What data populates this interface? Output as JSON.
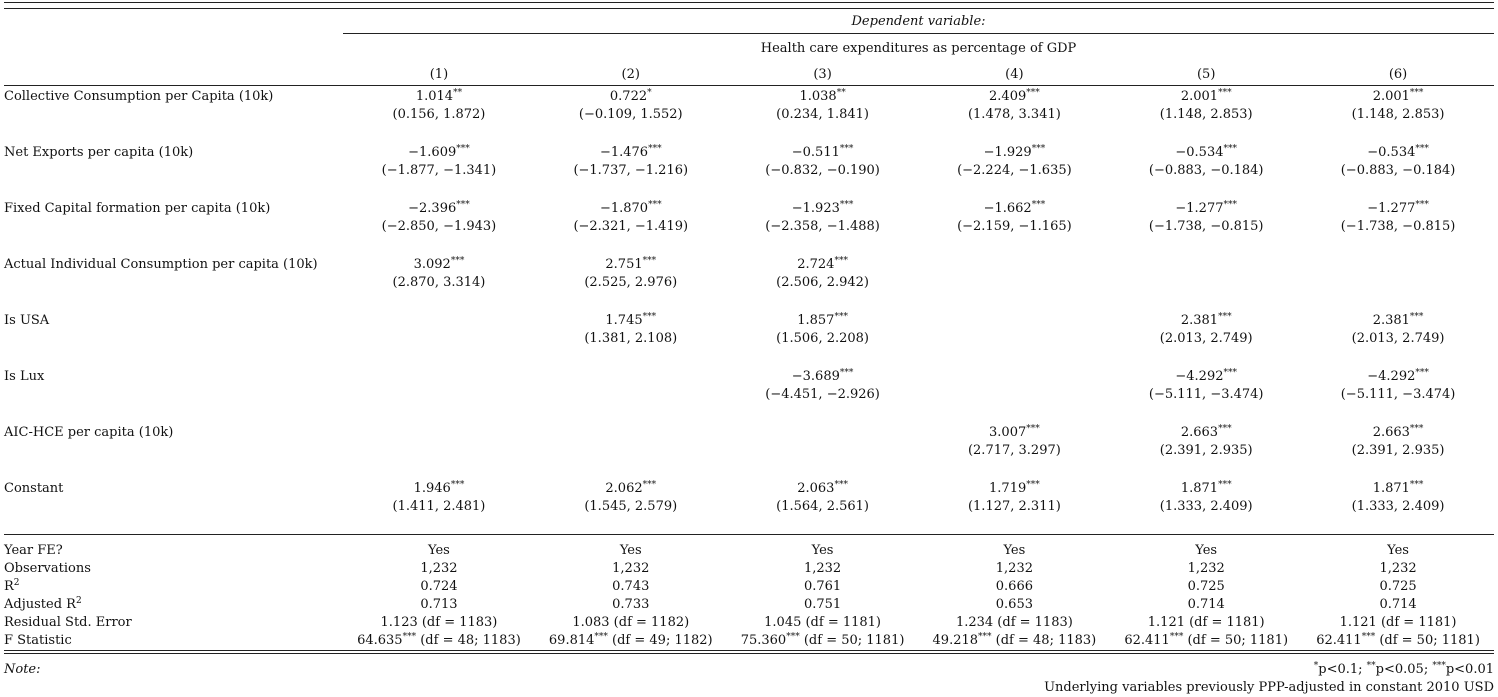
{
  "header": {
    "dependent_variable_label": "Dependent variable:",
    "dependent_variable": "Health care expenditures as percentage of GDP",
    "columns": [
      "(1)",
      "(2)",
      "(3)",
      "(4)",
      "(5)",
      "(6)"
    ]
  },
  "variables": [
    {
      "label": "Collective Consumption per Capita (10k)",
      "cells": [
        {
          "coef": "1.014",
          "stars": "**",
          "ci": "(0.156, 1.872)"
        },
        {
          "coef": "0.722",
          "stars": "*",
          "ci": "(−0.109, 1.552)"
        },
        {
          "coef": "1.038",
          "stars": "**",
          "ci": "(0.234, 1.841)"
        },
        {
          "coef": "2.409",
          "stars": "***",
          "ci": "(1.478, 3.341)"
        },
        {
          "coef": "2.001",
          "stars": "***",
          "ci": "(1.148, 2.853)"
        },
        {
          "coef": "2.001",
          "stars": "***",
          "ci": "(1.148, 2.853)"
        }
      ]
    },
    {
      "label": "Net Exports per capita (10k)",
      "cells": [
        {
          "coef": "−1.609",
          "stars": "***",
          "ci": "(−1.877, −1.341)"
        },
        {
          "coef": "−1.476",
          "stars": "***",
          "ci": "(−1.737, −1.216)"
        },
        {
          "coef": "−0.511",
          "stars": "***",
          "ci": "(−0.832, −0.190)"
        },
        {
          "coef": "−1.929",
          "stars": "***",
          "ci": "(−2.224, −1.635)"
        },
        {
          "coef": "−0.534",
          "stars": "***",
          "ci": "(−0.883, −0.184)"
        },
        {
          "coef": "−0.534",
          "stars": "***",
          "ci": "(−0.883, −0.184)"
        }
      ]
    },
    {
      "label": "Fixed Capital formation per capita (10k)",
      "cells": [
        {
          "coef": "−2.396",
          "stars": "***",
          "ci": "(−2.850, −1.943)"
        },
        {
          "coef": "−1.870",
          "stars": "***",
          "ci": "(−2.321, −1.419)"
        },
        {
          "coef": "−1.923",
          "stars": "***",
          "ci": "(−2.358, −1.488)"
        },
        {
          "coef": "−1.662",
          "stars": "***",
          "ci": "(−2.159, −1.165)"
        },
        {
          "coef": "−1.277",
          "stars": "***",
          "ci": "(−1.738, −0.815)"
        },
        {
          "coef": "−1.277",
          "stars": "***",
          "ci": "(−1.738, −0.815)"
        }
      ]
    },
    {
      "label": "Actual Individual Consumption per capita (10k)",
      "cells": [
        {
          "coef": "3.092",
          "stars": "***",
          "ci": "(2.870, 3.314)"
        },
        {
          "coef": "2.751",
          "stars": "***",
          "ci": "(2.525, 2.976)"
        },
        {
          "coef": "2.724",
          "stars": "***",
          "ci": "(2.506, 2.942)"
        },
        {
          "coef": "",
          "stars": "",
          "ci": ""
        },
        {
          "coef": "",
          "stars": "",
          "ci": ""
        },
        {
          "coef": "",
          "stars": "",
          "ci": ""
        }
      ]
    },
    {
      "label": "Is USA",
      "cells": [
        {
          "coef": "",
          "stars": "",
          "ci": ""
        },
        {
          "coef": "1.745",
          "stars": "***",
          "ci": "(1.381, 2.108)"
        },
        {
          "coef": "1.857",
          "stars": "***",
          "ci": "(1.506, 2.208)"
        },
        {
          "coef": "",
          "stars": "",
          "ci": ""
        },
        {
          "coef": "2.381",
          "stars": "***",
          "ci": "(2.013, 2.749)"
        },
        {
          "coef": "2.381",
          "stars": "***",
          "ci": "(2.013, 2.749)"
        }
      ]
    },
    {
      "label": "Is Lux",
      "cells": [
        {
          "coef": "",
          "stars": "",
          "ci": ""
        },
        {
          "coef": "",
          "stars": "",
          "ci": ""
        },
        {
          "coef": "−3.689",
          "stars": "***",
          "ci": "(−4.451, −2.926)"
        },
        {
          "coef": "",
          "stars": "",
          "ci": ""
        },
        {
          "coef": "−4.292",
          "stars": "***",
          "ci": "(−5.111, −3.474)"
        },
        {
          "coef": "−4.292",
          "stars": "***",
          "ci": "(−5.111, −3.474)"
        }
      ]
    },
    {
      "label": "AIC-HCE per capita (10k)",
      "cells": [
        {
          "coef": "",
          "stars": "",
          "ci": ""
        },
        {
          "coef": "",
          "stars": "",
          "ci": ""
        },
        {
          "coef": "",
          "stars": "",
          "ci": ""
        },
        {
          "coef": "3.007",
          "stars": "***",
          "ci": "(2.717, 3.297)"
        },
        {
          "coef": "2.663",
          "stars": "***",
          "ci": "(2.391, 2.935)"
        },
        {
          "coef": "2.663",
          "stars": "***",
          "ci": "(2.391, 2.935)"
        }
      ]
    },
    {
      "label": "Constant",
      "cells": [
        {
          "coef": "1.946",
          "stars": "***",
          "ci": "(1.411, 2.481)"
        },
        {
          "coef": "2.062",
          "stars": "***",
          "ci": "(1.545, 2.579)"
        },
        {
          "coef": "2.063",
          "stars": "***",
          "ci": "(1.564, 2.561)"
        },
        {
          "coef": "1.719",
          "stars": "***",
          "ci": "(1.127, 2.311)"
        },
        {
          "coef": "1.871",
          "stars": "***",
          "ci": "(1.333, 2.409)"
        },
        {
          "coef": "1.871",
          "stars": "***",
          "ci": "(1.333, 2.409)"
        }
      ]
    }
  ],
  "stats": [
    {
      "label": "Year FE?",
      "values": [
        "Yes",
        "Yes",
        "Yes",
        "Yes",
        "Yes",
        "Yes"
      ]
    },
    {
      "label": "Observations",
      "values": [
        "1,232",
        "1,232",
        "1,232",
        "1,232",
        "1,232",
        "1,232"
      ]
    },
    {
      "label": "R",
      "label_sup": "2",
      "values": [
        "0.724",
        "0.743",
        "0.761",
        "0.666",
        "0.725",
        "0.725"
      ]
    },
    {
      "label": "Adjusted R",
      "label_sup": "2",
      "values": [
        "0.713",
        "0.733",
        "0.751",
        "0.653",
        "0.714",
        "0.714"
      ]
    },
    {
      "label": "Residual Std. Error",
      "values": [
        "1.123 (df = 1183)",
        "1.083 (df = 1182)",
        "1.045 (df = 1181)",
        "1.234 (df = 1183)",
        "1.121 (df = 1181)",
        "1.121 (df = 1181)"
      ]
    },
    {
      "label": "F Statistic",
      "values": [
        {
          "num": "64.635",
          "stars": "***",
          "df": " (df = 48; 1183)"
        },
        {
          "num": "69.814",
          "stars": "***",
          "df": " (df = 49; 1182)"
        },
        {
          "num": "75.360",
          "stars": "***",
          "df": " (df = 50; 1181)"
        },
        {
          "num": "49.218",
          "stars": "***",
          "df": " (df = 48; 1183)"
        },
        {
          "num": "62.411",
          "stars": "***",
          "df": " (df = 50; 1181)"
        },
        {
          "num": "62.411",
          "stars": "***",
          "df": " (df = 50; 1181)"
        }
      ]
    }
  ],
  "notes": {
    "label": "Note:",
    "significance": [
      {
        "stars": "*",
        "text": "p<0.1; "
      },
      {
        "stars": "**",
        "text": "p<0.05; "
      },
      {
        "stars": "***",
        "text": "p<0.01"
      }
    ],
    "extra": "Underlying variables previously PPP-adjusted in constant 2010 USD"
  }
}
